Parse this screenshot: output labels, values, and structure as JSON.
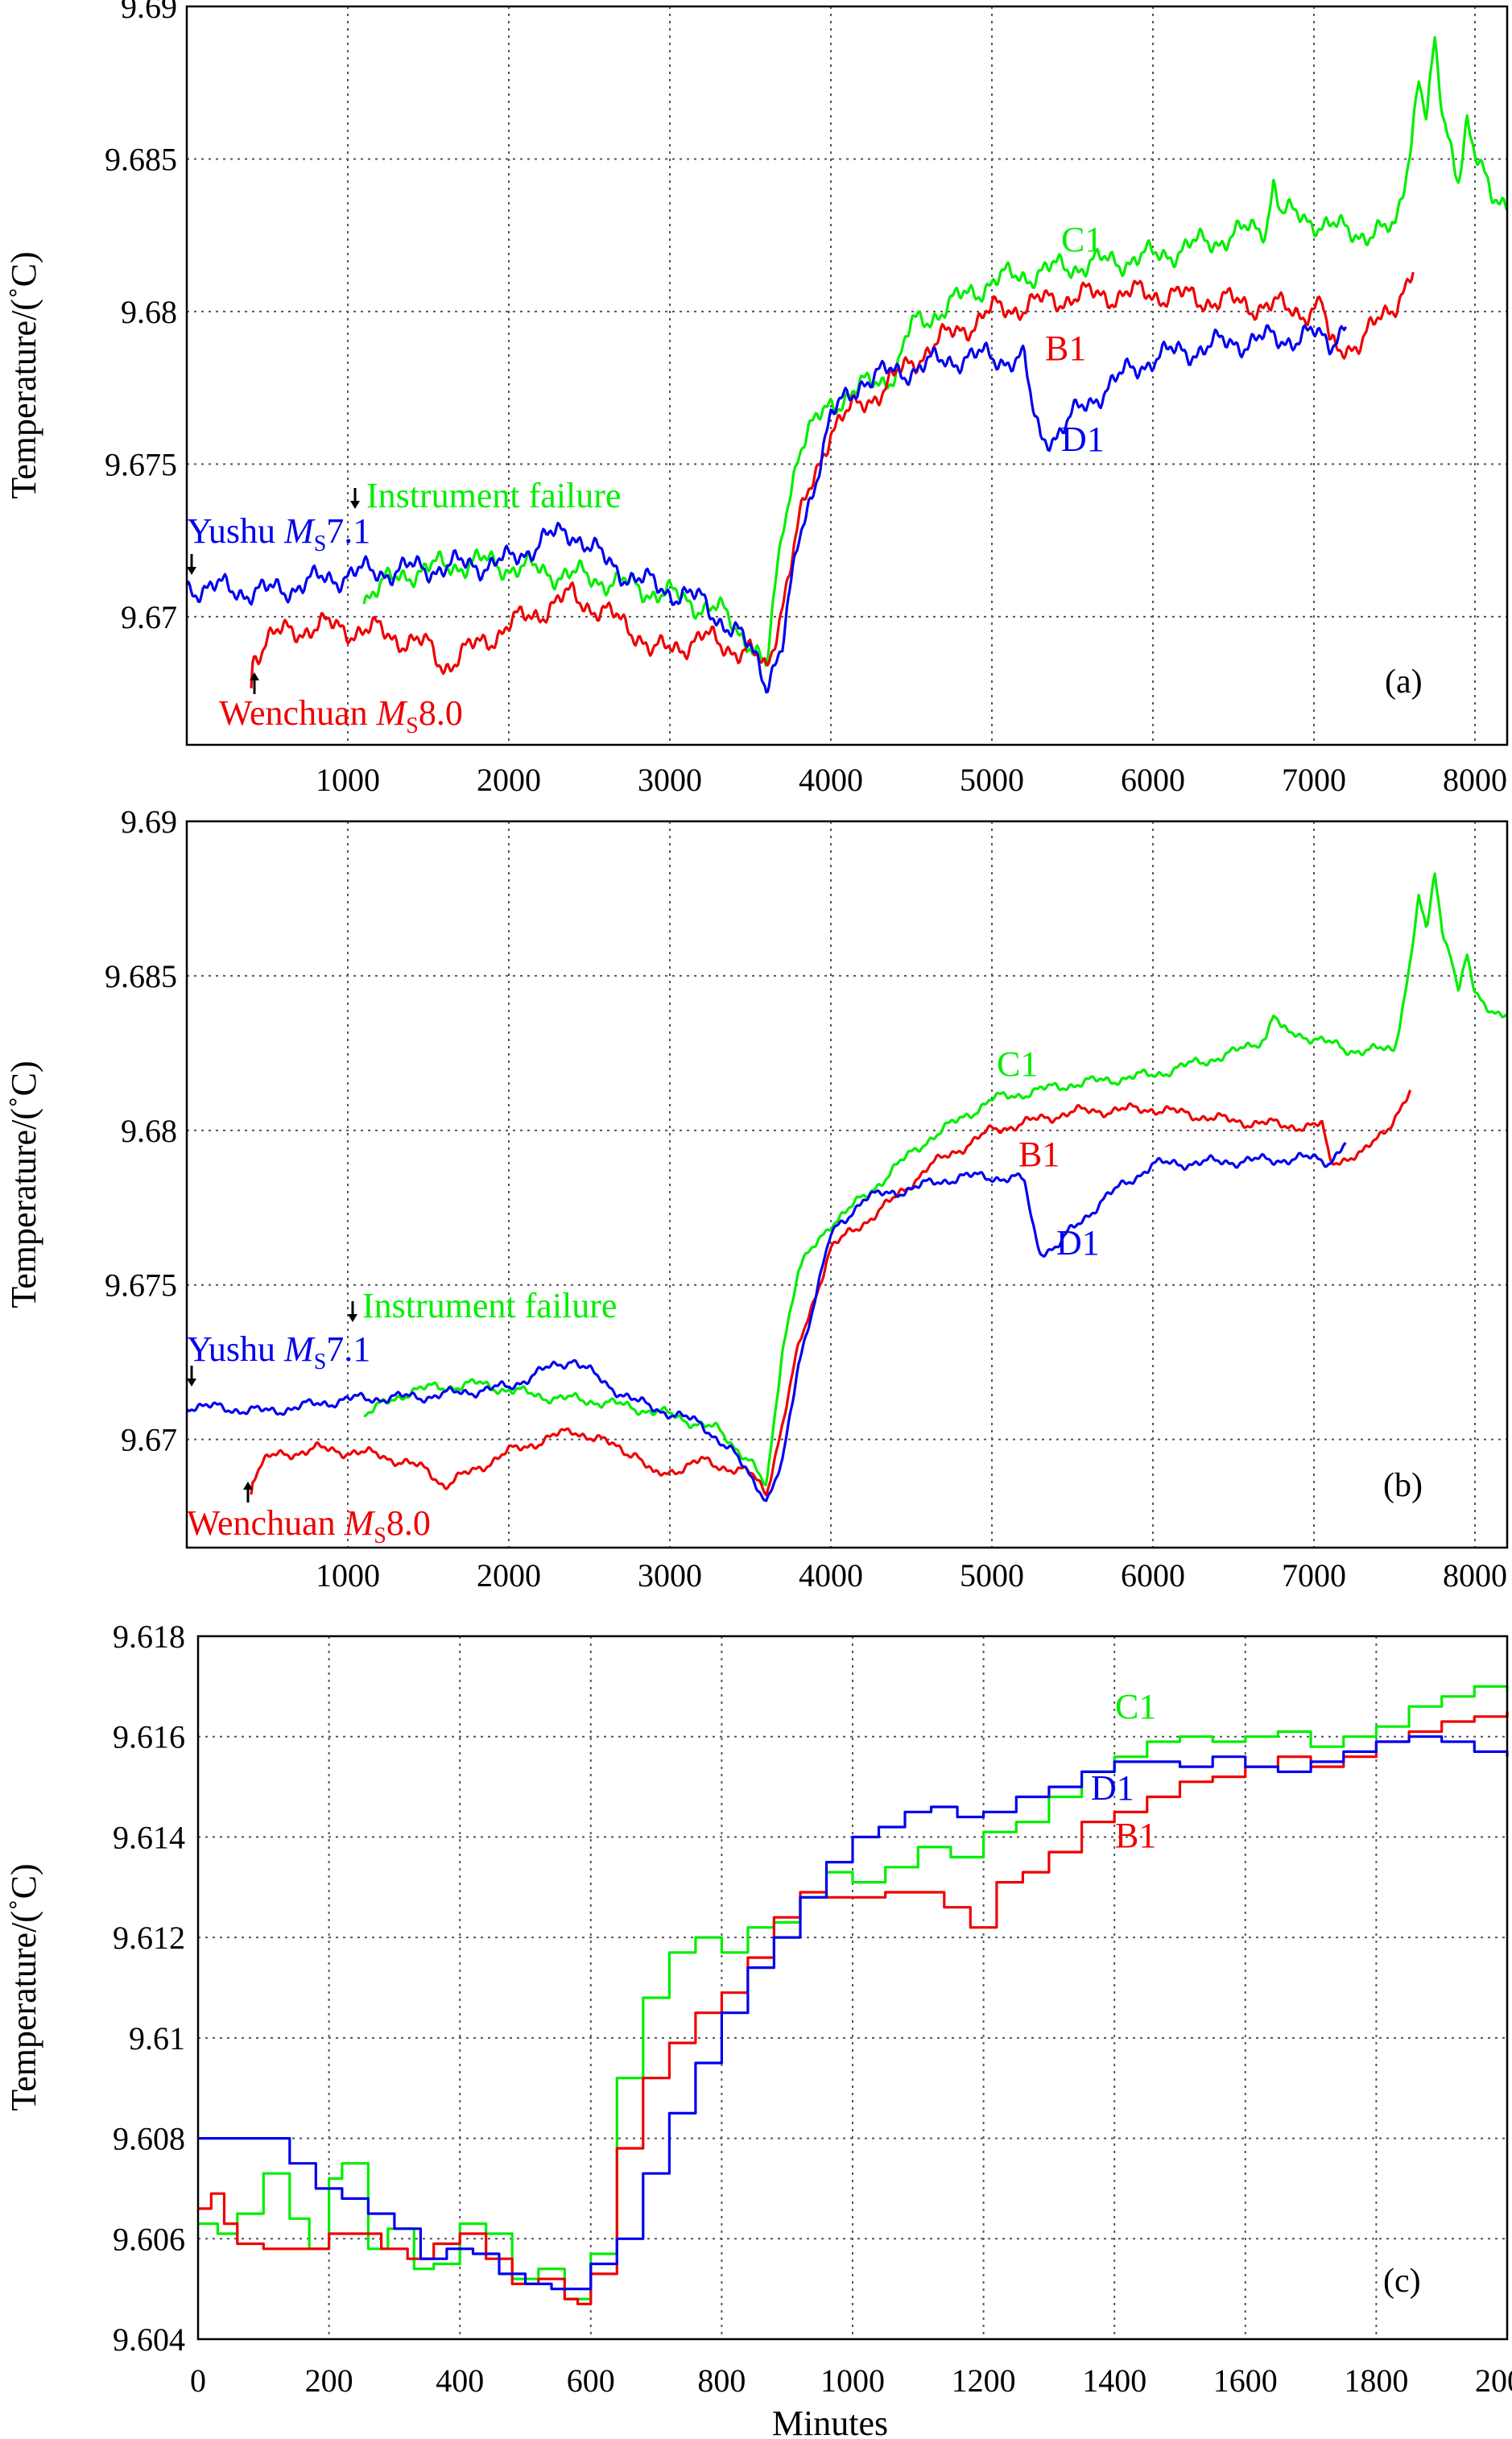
{
  "chart_data": [
    {
      "type": "line",
      "panel_label": "(a)",
      "ylabel": "Temperature/(˚C)",
      "xlabel": "",
      "xlim": [
        0,
        8200
      ],
      "ylim": [
        9.6658,
        9.69
      ],
      "xticks": [
        1000,
        2000,
        3000,
        4000,
        5000,
        6000,
        7000,
        8000
      ],
      "yticks": [
        9.67,
        9.675,
        9.68,
        9.685,
        9.69
      ],
      "xtick_labels": [
        "1000",
        "2000",
        "3000",
        "4000",
        "5000",
        "6000",
        "7000",
        "8000"
      ],
      "ytick_labels": [
        "9.67",
        "9.675",
        "9.68",
        "9.685",
        "9.69"
      ],
      "grid": true,
      "noise": 0.00055,
      "series": [
        {
          "name": "C1",
          "color": "#00ee00",
          "x": [
            1100,
            1400,
            1800,
            2200,
            2600,
            3000,
            3300,
            3500,
            3600,
            3700,
            3800,
            4000,
            4200,
            4400,
            4500,
            5000,
            5500,
            6000,
            6500,
            6700,
            6750,
            6800,
            7000,
            7200,
            7500,
            7600,
            7650,
            7700,
            7750,
            7800,
            7850,
            7900,
            7950,
            8000,
            8100,
            8200
          ],
          "y": [
            9.6707,
            9.6715,
            9.6718,
            9.6715,
            9.6712,
            9.6707,
            9.6702,
            9.6692,
            9.6682,
            9.673,
            9.6755,
            9.677,
            9.6775,
            9.678,
            9.6795,
            9.681,
            9.6815,
            9.6818,
            9.6825,
            9.6828,
            9.6843,
            9.6832,
            9.683,
            9.6826,
            9.6826,
            9.6855,
            9.6878,
            9.6862,
            9.6887,
            9.6863,
            9.6855,
            9.6845,
            9.6863,
            9.685,
            9.6838,
            9.6837
          ]
        },
        {
          "name": "B1",
          "color": "#ee0000",
          "x": [
            400,
            410,
            500,
            800,
            1200,
            1500,
            1600,
            2000,
            2400,
            2800,
            2900,
            3200,
            3500,
            3600,
            3700,
            3800,
            4000,
            4200,
            4400,
            4600,
            5000,
            5500,
            6000,
            6500,
            7000,
            7050,
            7100,
            7300,
            7500,
            7620
          ],
          "y": [
            9.6678,
            9.6687,
            9.6693,
            9.6697,
            9.6695,
            9.669,
            9.6684,
            9.6697,
            9.6707,
            9.6695,
            9.6688,
            9.6693,
            9.6688,
            9.6682,
            9.6705,
            9.673,
            9.6762,
            9.677,
            9.6778,
            9.6788,
            9.68,
            9.6805,
            9.6806,
            9.6803,
            9.68,
            9.6803,
            9.6788,
            9.679,
            9.6803,
            9.6813
          ]
        },
        {
          "name": "D1",
          "color": "#0000ee",
          "x": [
            0,
            500,
            1000,
            1500,
            2000,
            2200,
            2400,
            2600,
            2800,
            3200,
            3400,
            3550,
            3600,
            3700,
            3800,
            4000,
            4200,
            4400,
            4800,
            5000,
            5200,
            5250,
            5300,
            5400,
            5500,
            5700,
            6000,
            6500,
            7000,
            7100,
            7200
          ],
          "y": [
            9.671,
            9.6708,
            9.6714,
            9.6716,
            9.6718,
            9.6725,
            9.6728,
            9.6718,
            9.6712,
            9.6705,
            9.6695,
            9.6686,
            9.6679,
            9.669,
            9.6725,
            9.6765,
            9.6778,
            9.678,
            9.6785,
            9.6785,
            9.6784,
            9.6768,
            9.6759,
            9.676,
            9.6765,
            9.6775,
            9.6785,
            9.679,
            9.6792,
            9.679,
            9.6797
          ]
        }
      ],
      "annotations": {
        "instrument_failure": "Instrument failure",
        "yushu_prefix": "Yushu ",
        "yushu_m": "M",
        "yushu_sub": "S",
        "yushu_mag": "7.1",
        "wenchuan_prefix": "Wenchuan ",
        "wenchuan_m": "M",
        "wenchuan_sub": "S",
        "wenchuan_mag": "8.0"
      }
    },
    {
      "type": "line",
      "panel_label": "(b)",
      "ylabel": "Temperature/(˚C)",
      "xlabel": "",
      "xlim": [
        0,
        8200
      ],
      "ylim": [
        9.6665,
        9.69
      ],
      "xticks": [
        1000,
        2000,
        3000,
        4000,
        5000,
        6000,
        7000,
        8000
      ],
      "yticks": [
        9.67,
        9.675,
        9.68,
        9.685,
        9.69
      ],
      "xtick_labels": [
        "1000",
        "2000",
        "3000",
        "4000",
        "5000",
        "6000",
        "7000",
        "8000"
      ],
      "ytick_labels": [
        "9.67",
        "9.675",
        "9.68",
        "9.685",
        "9.69"
      ],
      "grid": true,
      "noise": 0.00022,
      "series": [
        {
          "name": "C1",
          "color": "#00ee00",
          "x": [
            1100,
            1400,
            1800,
            2200,
            2600,
            3000,
            3300,
            3500,
            3600,
            3700,
            3800,
            4000,
            4200,
            4400,
            4600,
            5000,
            5500,
            6000,
            6500,
            6700,
            6750,
            6800,
            7000,
            7200,
            7500,
            7600,
            7650,
            7700,
            7750,
            7800,
            7850,
            7900,
            7950,
            8000,
            8100,
            8200
          ],
          "y": [
            9.6708,
            9.6716,
            9.6718,
            9.6714,
            9.6712,
            9.6708,
            9.6703,
            9.6693,
            9.6684,
            9.673,
            9.6755,
            9.677,
            9.6778,
            9.6788,
            9.6797,
            9.681,
            9.6815,
            9.6818,
            9.6825,
            9.683,
            9.6838,
            9.6832,
            9.683,
            9.6826,
            9.6826,
            9.6855,
            9.6876,
            9.6863,
            9.6884,
            9.6863,
            9.6858,
            9.6845,
            9.6857,
            9.6843,
            9.6839,
            9.6838
          ]
        },
        {
          "name": "B1",
          "color": "#ee0000",
          "x": [
            400,
            410,
            500,
            800,
            1200,
            1500,
            1600,
            2000,
            2400,
            2800,
            2900,
            3200,
            3500,
            3600,
            3700,
            3800,
            4000,
            4200,
            4400,
            4600,
            5000,
            5500,
            6000,
            6500,
            7000,
            7050,
            7100,
            7300,
            7500,
            7600
          ],
          "y": [
            9.6683,
            9.6688,
            9.6694,
            9.6697,
            9.6695,
            9.669,
            9.6685,
            9.6696,
            9.6703,
            9.6695,
            9.6688,
            9.6693,
            9.6689,
            9.6683,
            9.6705,
            9.673,
            9.6762,
            9.677,
            9.6778,
            9.6788,
            9.68,
            9.6806,
            9.6807,
            9.6803,
            9.6801,
            9.6802,
            9.679,
            9.6792,
            9.6804,
            9.6812
          ]
        },
        {
          "name": "D1",
          "color": "#0000ee",
          "x": [
            0,
            500,
            1000,
            1500,
            2000,
            2200,
            2400,
            2600,
            2800,
            3200,
            3400,
            3550,
            3600,
            3700,
            3800,
            4000,
            4200,
            4400,
            4800,
            5000,
            5200,
            5250,
            5300,
            5400,
            5500,
            5700,
            6000,
            6500,
            7000,
            7100,
            7200
          ],
          "y": [
            9.6711,
            9.6709,
            9.6713,
            9.6714,
            9.6717,
            9.6722,
            9.6726,
            9.6718,
            9.6712,
            9.6705,
            9.6695,
            9.6685,
            9.668,
            9.6692,
            9.6725,
            9.6766,
            9.6778,
            9.678,
            9.6785,
            9.6785,
            9.6784,
            9.677,
            9.6761,
            9.6762,
            9.6768,
            9.6778,
            9.6789,
            9.679,
            9.6791,
            9.679,
            9.6796
          ]
        }
      ],
      "annotations": {
        "instrument_failure": "Instrument failure",
        "yushu_prefix": "Yushu ",
        "yushu_m": "M",
        "yushu_sub": "S",
        "yushu_mag": "7.1",
        "wenchuan_prefix": "Wenchuan ",
        "wenchuan_m": "M",
        "wenchuan_sub": "S",
        "wenchuan_mag": "8.0"
      }
    },
    {
      "type": "line",
      "panel_label": "(c)",
      "ylabel": "Temperature/(˚C)",
      "xlabel": "Minutes",
      "xlim": [
        0,
        2000
      ],
      "ylim": [
        9.604,
        9.618
      ],
      "xticks": [
        0,
        200,
        400,
        600,
        800,
        1000,
        1200,
        1400,
        1600,
        1800,
        2000
      ],
      "yticks": [
        9.604,
        9.606,
        9.608,
        9.61,
        9.612,
        9.614,
        9.616,
        9.618
      ],
      "xtick_labels": [
        "0",
        "200",
        "400",
        "600",
        "800",
        "1000",
        "1200",
        "1400",
        "1600",
        "1800",
        "2000"
      ],
      "ytick_labels": [
        "9.604",
        "9.606",
        "9.608",
        "9.61",
        "9.612",
        "9.614",
        "9.616",
        "9.618"
      ],
      "grid": true,
      "noise": 0,
      "series": [
        {
          "name": "C1",
          "color": "#00ee00",
          "x": [
            0,
            30,
            60,
            100,
            140,
            170,
            200,
            220,
            260,
            290,
            330,
            360,
            400,
            440,
            480,
            520,
            560,
            580,
            600,
            640,
            680,
            720,
            760,
            800,
            840,
            880,
            920,
            960,
            1000,
            1050,
            1100,
            1150,
            1200,
            1250,
            1300,
            1350,
            1400,
            1450,
            1500,
            1550,
            1600,
            1650,
            1700,
            1750,
            1800,
            1850,
            1900,
            1950,
            2000
          ],
          "y": [
            9.6063,
            9.6061,
            9.6065,
            9.6073,
            9.6064,
            9.6058,
            9.6072,
            9.6075,
            9.6058,
            9.6062,
            9.6054,
            9.6055,
            9.6063,
            9.6061,
            9.6052,
            9.6054,
            9.6048,
            9.6048,
            9.6057,
            9.6092,
            9.6108,
            9.6117,
            9.612,
            9.6117,
            9.6122,
            9.6123,
            9.6128,
            9.6133,
            9.6131,
            9.6134,
            9.6138,
            9.6136,
            9.6141,
            9.6143,
            9.6148,
            9.6153,
            9.6156,
            9.6159,
            9.616,
            9.6159,
            9.616,
            9.6161,
            9.6158,
            9.616,
            9.6162,
            9.6166,
            9.6168,
            9.617,
            9.6169
          ]
        },
        {
          "name": "B1",
          "color": "#ee0000",
          "x": [
            0,
            20,
            40,
            60,
            100,
            150,
            200,
            240,
            280,
            320,
            360,
            400,
            440,
            480,
            520,
            560,
            580,
            600,
            640,
            680,
            720,
            760,
            800,
            840,
            880,
            920,
            960,
            1000,
            1050,
            1100,
            1140,
            1180,
            1220,
            1260,
            1300,
            1350,
            1400,
            1450,
            1500,
            1550,
            1600,
            1650,
            1700,
            1750,
            1800,
            1850,
            1900,
            1950,
            2000
          ],
          "y": [
            9.6066,
            9.6069,
            9.6063,
            9.6059,
            9.6058,
            9.6058,
            9.6061,
            9.6061,
            9.6058,
            9.6056,
            9.6059,
            9.6061,
            9.6056,
            9.6051,
            9.6052,
            9.6048,
            9.6047,
            9.6053,
            9.6078,
            9.6092,
            9.6099,
            9.6105,
            9.6109,
            9.6116,
            9.6124,
            9.6129,
            9.6128,
            9.6128,
            9.6129,
            9.6129,
            9.6126,
            9.6122,
            9.6131,
            9.6133,
            9.6137,
            9.6143,
            9.6145,
            9.6148,
            9.6151,
            9.6152,
            9.6154,
            9.6156,
            9.6154,
            9.6156,
            9.6159,
            9.6161,
            9.6163,
            9.6164,
            9.6165
          ]
        },
        {
          "name": "D1",
          "color": "#0000ee",
          "x": [
            0,
            100,
            140,
            180,
            220,
            260,
            300,
            340,
            380,
            420,
            460,
            500,
            540,
            580,
            600,
            640,
            680,
            720,
            760,
            800,
            840,
            880,
            920,
            960,
            1000,
            1040,
            1080,
            1120,
            1160,
            1200,
            1250,
            1300,
            1350,
            1400,
            1450,
            1500,
            1550,
            1600,
            1650,
            1700,
            1750,
            1800,
            1850,
            1900,
            1950,
            2000
          ],
          "y": [
            9.608,
            9.608,
            9.6075,
            9.607,
            9.6068,
            9.6065,
            9.6062,
            9.6056,
            9.6058,
            9.6057,
            9.6053,
            9.6051,
            9.605,
            9.605,
            9.6055,
            9.606,
            9.6073,
            9.6085,
            9.6095,
            9.6105,
            9.6114,
            9.612,
            9.6128,
            9.6135,
            9.614,
            9.6142,
            9.6145,
            9.6146,
            9.6144,
            9.6145,
            9.6148,
            9.615,
            9.6153,
            9.6155,
            9.6155,
            9.6154,
            9.6156,
            9.6154,
            9.6153,
            9.6155,
            9.6157,
            9.6159,
            9.616,
            9.6159,
            9.6157,
            9.6156
          ]
        }
      ]
    }
  ]
}
